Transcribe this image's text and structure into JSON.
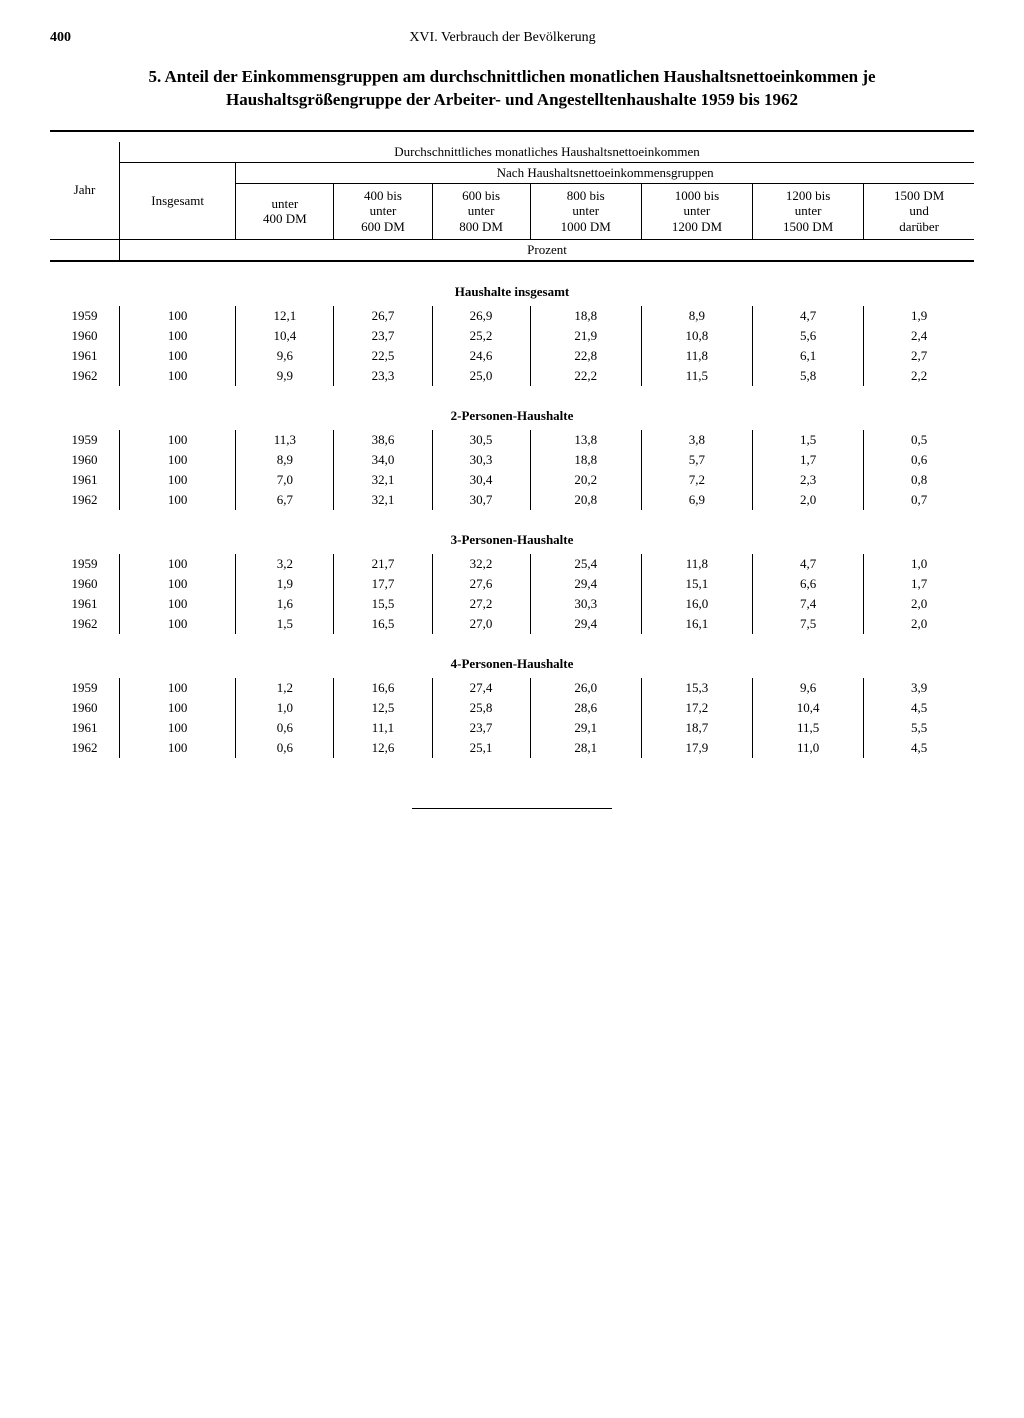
{
  "page": {
    "number": "400",
    "chapter": "XVI. Verbrauch der Bevölkerung"
  },
  "title": "5. Anteil der Einkommensgruppen am durchschnittlichen monatlichen Haushaltsnettoeinkommen je Haushaltsgrößengruppe der Arbeiter- und Angestelltenhaushalte 1959 bis 1962",
  "headers": {
    "jahr": "Jahr",
    "insgesamt": "Insgesamt",
    "h_main": "Durchschnittliches monatliches Haushaltsnettoeinkommen",
    "h_sub": "Nach Haushaltsnettoeinkommensgruppen",
    "col1": "unter 400 DM",
    "col2": "400 bis unter 600 DM",
    "col3": "600 bis unter 800 DM",
    "col4": "800 bis unter 1000 DM",
    "col5": "1000 bis unter 1200 DM",
    "col6": "1200 bis unter 1500 DM",
    "col7": "1500 DM und darüber",
    "unit": "Prozent"
  },
  "sections": [
    {
      "label": "Haushalte insgesamt",
      "rows": [
        {
          "year": "1959",
          "total": "100",
          "v": [
            "12,1",
            "26,7",
            "26,9",
            "18,8",
            "8,9",
            "4,7",
            "1,9"
          ]
        },
        {
          "year": "1960",
          "total": "100",
          "v": [
            "10,4",
            "23,7",
            "25,2",
            "21,9",
            "10,8",
            "5,6",
            "2,4"
          ]
        },
        {
          "year": "1961",
          "total": "100",
          "v": [
            "9,6",
            "22,5",
            "24,6",
            "22,8",
            "11,8",
            "6,1",
            "2,7"
          ]
        },
        {
          "year": "1962",
          "total": "100",
          "v": [
            "9,9",
            "23,3",
            "25,0",
            "22,2",
            "11,5",
            "5,8",
            "2,2"
          ]
        }
      ]
    },
    {
      "label": "2-Personen-Haushalte",
      "rows": [
        {
          "year": "1959",
          "total": "100",
          "v": [
            "11,3",
            "38,6",
            "30,5",
            "13,8",
            "3,8",
            "1,5",
            "0,5"
          ]
        },
        {
          "year": "1960",
          "total": "100",
          "v": [
            "8,9",
            "34,0",
            "30,3",
            "18,8",
            "5,7",
            "1,7",
            "0,6"
          ]
        },
        {
          "year": "1961",
          "total": "100",
          "v": [
            "7,0",
            "32,1",
            "30,4",
            "20,2",
            "7,2",
            "2,3",
            "0,8"
          ]
        },
        {
          "year": "1962",
          "total": "100",
          "v": [
            "6,7",
            "32,1",
            "30,7",
            "20,8",
            "6,9",
            "2,0",
            "0,7"
          ]
        }
      ]
    },
    {
      "label": "3-Personen-Haushalte",
      "rows": [
        {
          "year": "1959",
          "total": "100",
          "v": [
            "3,2",
            "21,7",
            "32,2",
            "25,4",
            "11,8",
            "4,7",
            "1,0"
          ]
        },
        {
          "year": "1960",
          "total": "100",
          "v": [
            "1,9",
            "17,7",
            "27,6",
            "29,4",
            "15,1",
            "6,6",
            "1,7"
          ]
        },
        {
          "year": "1961",
          "total": "100",
          "v": [
            "1,6",
            "15,5",
            "27,2",
            "30,3",
            "16,0",
            "7,4",
            "2,0"
          ]
        },
        {
          "year": "1962",
          "total": "100",
          "v": [
            "1,5",
            "16,5",
            "27,0",
            "29,4",
            "16,1",
            "7,5",
            "2,0"
          ]
        }
      ]
    },
    {
      "label": "4-Personen-Haushalte",
      "rows": [
        {
          "year": "1959",
          "total": "100",
          "v": [
            "1,2",
            "16,6",
            "27,4",
            "26,0",
            "15,3",
            "9,6",
            "3,9"
          ]
        },
        {
          "year": "1960",
          "total": "100",
          "v": [
            "1,0",
            "12,5",
            "25,8",
            "28,6",
            "17,2",
            "10,4",
            "4,5"
          ]
        },
        {
          "year": "1961",
          "total": "100",
          "v": [
            "0,6",
            "11,1",
            "23,7",
            "29,1",
            "18,7",
            "11,5",
            "5,5"
          ]
        },
        {
          "year": "1962",
          "total": "100",
          "v": [
            "0,6",
            "12,6",
            "25,1",
            "28,1",
            "17,9",
            "11,0",
            "4,5"
          ]
        }
      ]
    }
  ]
}
